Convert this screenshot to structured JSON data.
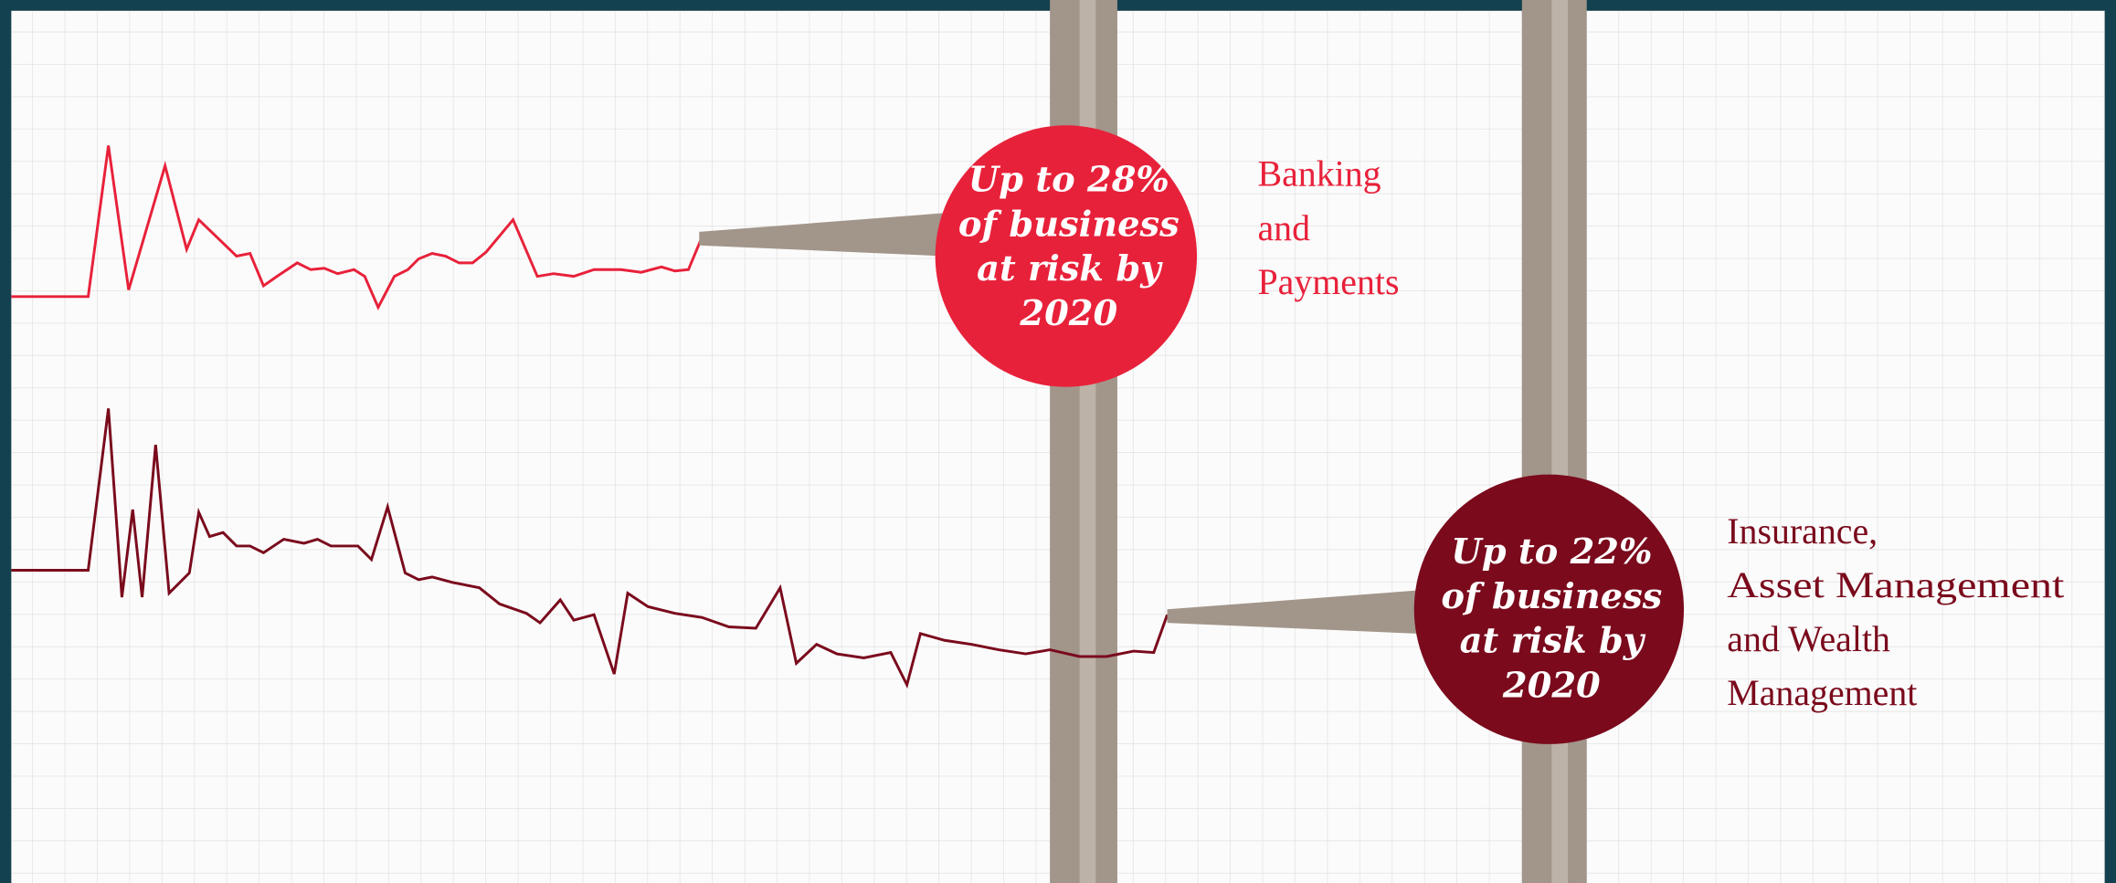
{
  "callouts": [
    {
      "text": [
        "Up to 28%",
        "of business",
        "at risk by",
        "2020"
      ],
      "label": [
        "Banking",
        "and",
        "Payments"
      ]
    },
    {
      "text": [
        "Up to 22%",
        "of business",
        "at risk by",
        "2020"
      ],
      "label": [
        "Insurance,",
        "Asset Management",
        "and Wealth",
        "Management"
      ]
    }
  ]
}
